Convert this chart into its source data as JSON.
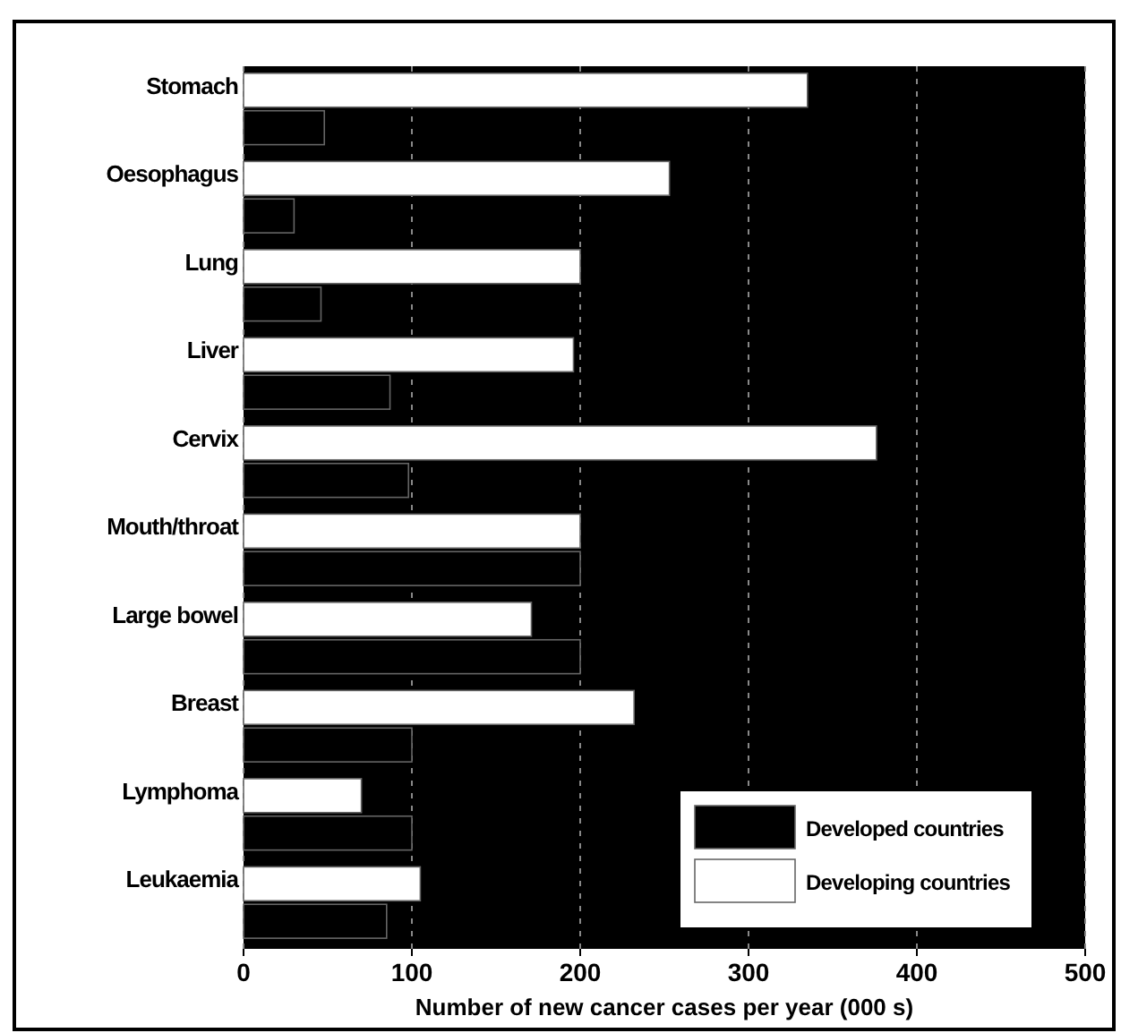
{
  "chart_data": {
    "type": "bar",
    "orientation": "horizontal",
    "xlabel": "Number of new cancer cases per year (000 s)",
    "categories": [
      "Stomach",
      "Oesophagus",
      "Lung",
      "Liver",
      "Cervix",
      "Mouth/throat",
      "Large bowel",
      "Breast",
      "Lymphoma",
      "Leukaemia"
    ],
    "series": [
      {
        "name": "Developing countries",
        "color": "#ffffff",
        "values": [
          335,
          253,
          200,
          196,
          376,
          200,
          171,
          232,
          70,
          105
        ]
      },
      {
        "name": "Developed countries",
        "color": "#000000",
        "values": [
          48,
          30,
          46,
          87,
          98,
          200,
          200,
          100,
          100,
          85
        ]
      }
    ],
    "xlim": [
      0,
      500
    ],
    "xticks": [
      0,
      100,
      200,
      300,
      400,
      500
    ],
    "grid": "x",
    "legend": "bottom right"
  }
}
